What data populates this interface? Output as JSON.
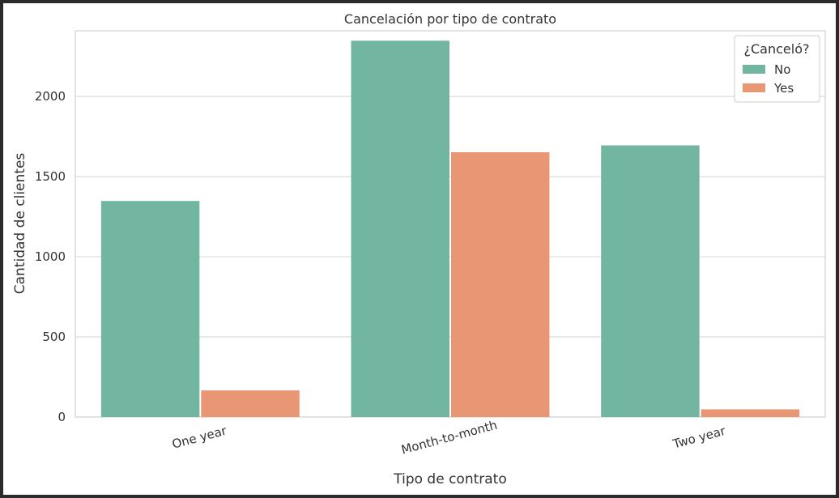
{
  "chart_data": {
    "type": "bar",
    "title": "Cancelación por tipo de contrato",
    "xlabel": "Tipo de contrato",
    "ylabel": "Cantidad de clientes",
    "categories": [
      "One year",
      "Month-to-month",
      "Two year"
    ],
    "series": [
      {
        "name": "No",
        "values": [
          1348,
          2348,
          1695
        ],
        "color": "#72b6a1"
      },
      {
        "name": "Yes",
        "values": [
          166,
          1652,
          48
        ],
        "color": "#e99675"
      }
    ],
    "ylim": [
      0,
      2410
    ],
    "yticks": [
      0,
      500,
      1000,
      1500,
      2000
    ],
    "grid": true,
    "legend": {
      "title": "¿Canceló?",
      "placement": "top-right"
    }
  }
}
